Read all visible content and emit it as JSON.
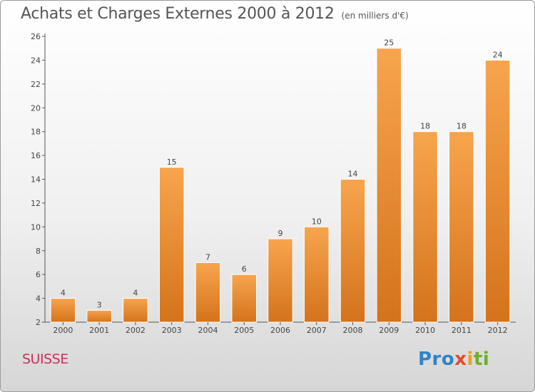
{
  "title": "Achats et Charges Externes 2000 à 2012",
  "subtitle": "(en milliers d'€)",
  "region": "SUISSE",
  "logo": {
    "p1": "Pro",
    "p2": "x",
    "p3": "i",
    "p4": "ti"
  },
  "colors": {
    "bar_light": "#f7a54d",
    "bar_dark": "#d4731c",
    "region": "#c8325a"
  },
  "chart_data": {
    "type": "bar",
    "title": "Achats et Charges Externes 2000 à 2012",
    "subtitle": "(en milliers d'€)",
    "xlabel": "",
    "ylabel": "",
    "categories": [
      "2000",
      "2001",
      "2002",
      "2003",
      "2004",
      "2005",
      "2006",
      "2007",
      "2008",
      "2009",
      "2010",
      "2011",
      "2012"
    ],
    "values": [
      4,
      3,
      4,
      15,
      7,
      6,
      9,
      10,
      14,
      25,
      18,
      18,
      24
    ],
    "ylim": [
      2,
      26
    ],
    "yticks": [
      2,
      4,
      6,
      8,
      10,
      12,
      14,
      16,
      18,
      20,
      22,
      24,
      26
    ],
    "grid": false,
    "data_labels": true
  }
}
